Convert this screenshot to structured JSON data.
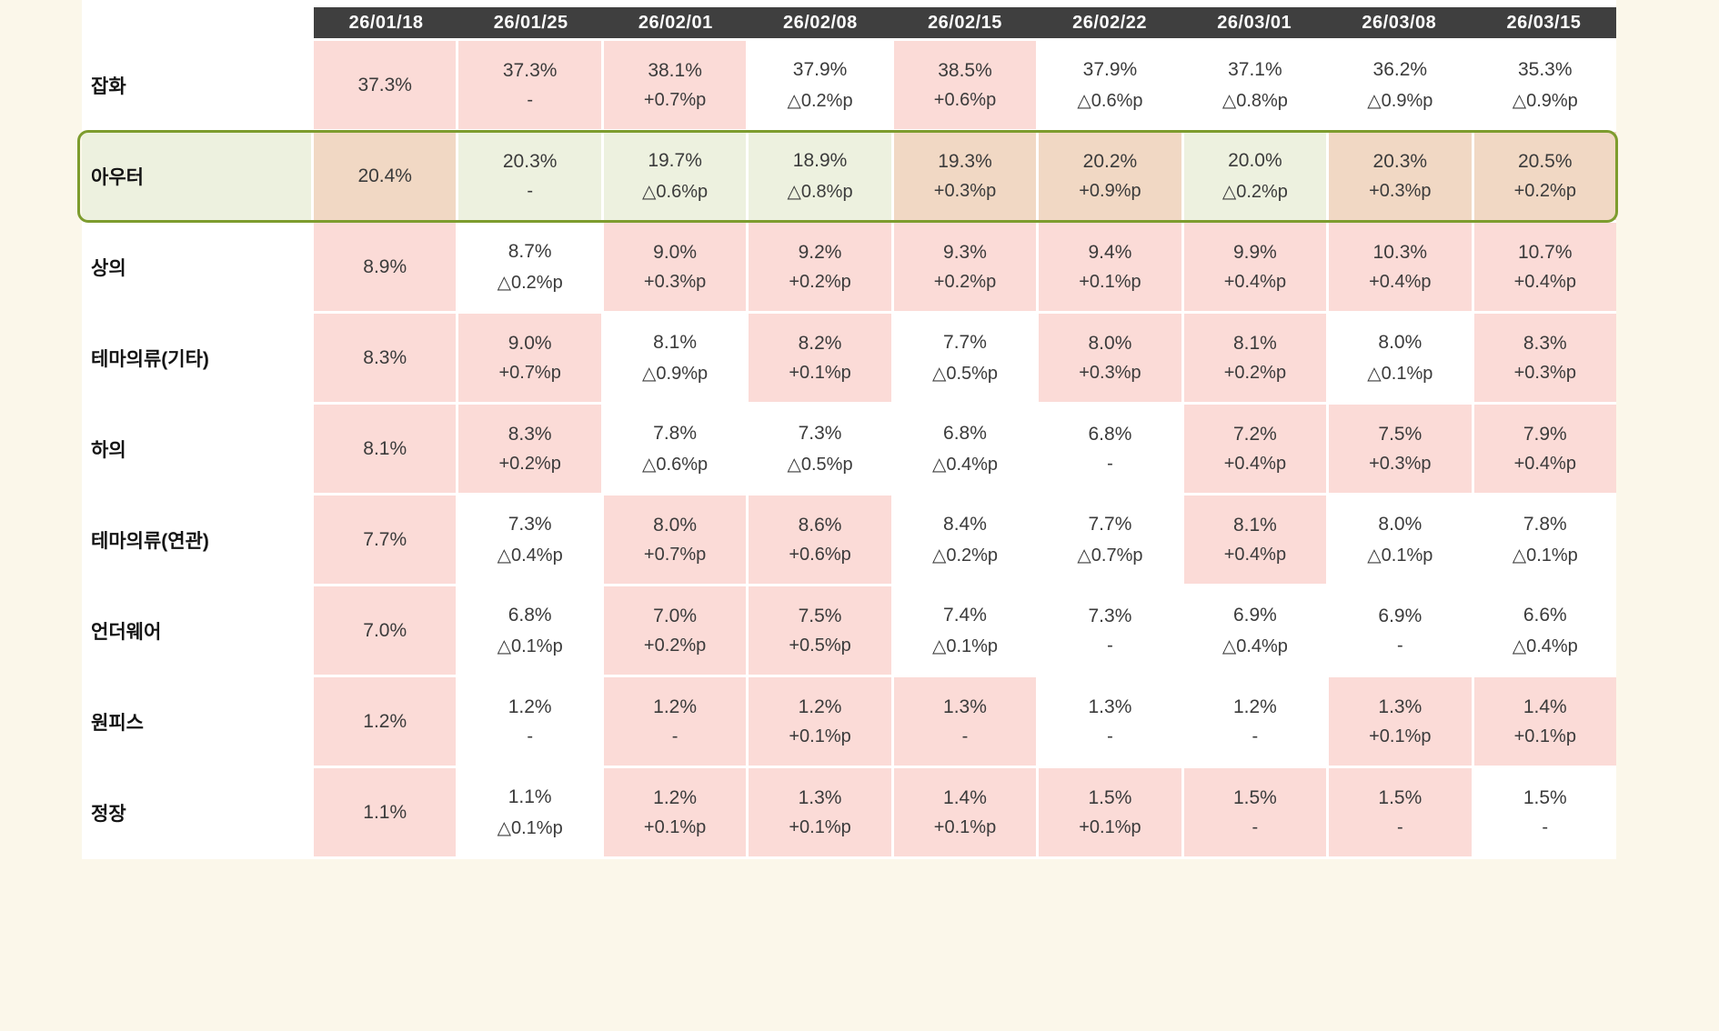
{
  "page": {
    "background_color": "#fbf7ea",
    "panel_background": "#ffffff"
  },
  "colors": {
    "header_background": "#3f3f3f",
    "header_text": "#ffffff",
    "increase_cell_pink": "#fbdbd7",
    "decrease_cell_white": "#ffffff",
    "highlight_increase_tan": "#f1d8c4",
    "highlight_decrease_green": "#edf1df",
    "highlight_border_green": "#7d9c2e",
    "value_text": "#3b3b3b"
  },
  "chart_data": {
    "type": "table",
    "title": "",
    "columns": [
      "26/01/18",
      "26/01/25",
      "26/02/01",
      "26/02/08",
      "26/02/15",
      "26/02/22",
      "26/03/01",
      "26/03/08",
      "26/03/15"
    ],
    "rows": [
      {
        "label": "잡화",
        "highlighted": false,
        "cells": [
          {
            "v": "37.3%",
            "d": "",
            "bg": "pink"
          },
          {
            "v": "37.3%",
            "d": "-",
            "bg": "pink"
          },
          {
            "v": "38.1%",
            "d": "+0.7%p",
            "bg": "pink"
          },
          {
            "v": "37.9%",
            "d": "△0.2%p",
            "bg": "white"
          },
          {
            "v": "38.5%",
            "d": "+0.6%p",
            "bg": "pink"
          },
          {
            "v": "37.9%",
            "d": "△0.6%p",
            "bg": "white"
          },
          {
            "v": "37.1%",
            "d": "△0.8%p",
            "bg": "white"
          },
          {
            "v": "36.2%",
            "d": "△0.9%p",
            "bg": "white"
          },
          {
            "v": "35.3%",
            "d": "△0.9%p",
            "bg": "white"
          }
        ]
      },
      {
        "label": "아우터",
        "highlighted": true,
        "cells": [
          {
            "v": "20.4%",
            "d": "",
            "bg": "tan"
          },
          {
            "v": "20.3%",
            "d": "-",
            "bg": "green"
          },
          {
            "v": "19.7%",
            "d": "△0.6%p",
            "bg": "green"
          },
          {
            "v": "18.9%",
            "d": "△0.8%p",
            "bg": "green"
          },
          {
            "v": "19.3%",
            "d": "+0.3%p",
            "bg": "tan"
          },
          {
            "v": "20.2%",
            "d": "+0.9%p",
            "bg": "tan"
          },
          {
            "v": "20.0%",
            "d": "△0.2%p",
            "bg": "green"
          },
          {
            "v": "20.3%",
            "d": "+0.3%p",
            "bg": "tan"
          },
          {
            "v": "20.5%",
            "d": "+0.2%p",
            "bg": "tan"
          }
        ]
      },
      {
        "label": "상의",
        "highlighted": false,
        "cells": [
          {
            "v": "8.9%",
            "d": "",
            "bg": "pink"
          },
          {
            "v": "8.7%",
            "d": "△0.2%p",
            "bg": "white"
          },
          {
            "v": "9.0%",
            "d": "+0.3%p",
            "bg": "pink"
          },
          {
            "v": "9.2%",
            "d": "+0.2%p",
            "bg": "pink"
          },
          {
            "v": "9.3%",
            "d": "+0.2%p",
            "bg": "pink"
          },
          {
            "v": "9.4%",
            "d": "+0.1%p",
            "bg": "pink"
          },
          {
            "v": "9.9%",
            "d": "+0.4%p",
            "bg": "pink"
          },
          {
            "v": "10.3%",
            "d": "+0.4%p",
            "bg": "pink"
          },
          {
            "v": "10.7%",
            "d": "+0.4%p",
            "bg": "pink"
          }
        ]
      },
      {
        "label": "테마의류(기타)",
        "highlighted": false,
        "cells": [
          {
            "v": "8.3%",
            "d": "",
            "bg": "pink"
          },
          {
            "v": "9.0%",
            "d": "+0.7%p",
            "bg": "pink"
          },
          {
            "v": "8.1%",
            "d": "△0.9%p",
            "bg": "white"
          },
          {
            "v": "8.2%",
            "d": "+0.1%p",
            "bg": "pink"
          },
          {
            "v": "7.7%",
            "d": "△0.5%p",
            "bg": "white"
          },
          {
            "v": "8.0%",
            "d": "+0.3%p",
            "bg": "pink"
          },
          {
            "v": "8.1%",
            "d": "+0.2%p",
            "bg": "pink"
          },
          {
            "v": "8.0%",
            "d": "△0.1%p",
            "bg": "white"
          },
          {
            "v": "8.3%",
            "d": "+0.3%p",
            "bg": "pink"
          }
        ]
      },
      {
        "label": "하의",
        "highlighted": false,
        "cells": [
          {
            "v": "8.1%",
            "d": "",
            "bg": "pink"
          },
          {
            "v": "8.3%",
            "d": "+0.2%p",
            "bg": "pink"
          },
          {
            "v": "7.8%",
            "d": "△0.6%p",
            "bg": "white"
          },
          {
            "v": "7.3%",
            "d": "△0.5%p",
            "bg": "white"
          },
          {
            "v": "6.8%",
            "d": "△0.4%p",
            "bg": "white"
          },
          {
            "v": "6.8%",
            "d": "-",
            "bg": "white"
          },
          {
            "v": "7.2%",
            "d": "+0.4%p",
            "bg": "pink"
          },
          {
            "v": "7.5%",
            "d": "+0.3%p",
            "bg": "pink"
          },
          {
            "v": "7.9%",
            "d": "+0.4%p",
            "bg": "pink"
          }
        ]
      },
      {
        "label": "테마의류(연관)",
        "highlighted": false,
        "cells": [
          {
            "v": "7.7%",
            "d": "",
            "bg": "pink"
          },
          {
            "v": "7.3%",
            "d": "△0.4%p",
            "bg": "white"
          },
          {
            "v": "8.0%",
            "d": "+0.7%p",
            "bg": "pink"
          },
          {
            "v": "8.6%",
            "d": "+0.6%p",
            "bg": "pink"
          },
          {
            "v": "8.4%",
            "d": "△0.2%p",
            "bg": "white"
          },
          {
            "v": "7.7%",
            "d": "△0.7%p",
            "bg": "white"
          },
          {
            "v": "8.1%",
            "d": "+0.4%p",
            "bg": "pink"
          },
          {
            "v": "8.0%",
            "d": "△0.1%p",
            "bg": "white"
          },
          {
            "v": "7.8%",
            "d": "△0.1%p",
            "bg": "white"
          }
        ]
      },
      {
        "label": "언더웨어",
        "highlighted": false,
        "cells": [
          {
            "v": "7.0%",
            "d": "",
            "bg": "pink"
          },
          {
            "v": "6.8%",
            "d": "△0.1%p",
            "bg": "white"
          },
          {
            "v": "7.0%",
            "d": "+0.2%p",
            "bg": "pink"
          },
          {
            "v": "7.5%",
            "d": "+0.5%p",
            "bg": "pink"
          },
          {
            "v": "7.4%",
            "d": "△0.1%p",
            "bg": "white"
          },
          {
            "v": "7.3%",
            "d": "-",
            "bg": "white"
          },
          {
            "v": "6.9%",
            "d": "△0.4%p",
            "bg": "white"
          },
          {
            "v": "6.9%",
            "d": "-",
            "bg": "white"
          },
          {
            "v": "6.6%",
            "d": "△0.4%p",
            "bg": "white"
          }
        ]
      },
      {
        "label": "원피스",
        "highlighted": false,
        "cells": [
          {
            "v": "1.2%",
            "d": "",
            "bg": "pink"
          },
          {
            "v": "1.2%",
            "d": "-",
            "bg": "white"
          },
          {
            "v": "1.2%",
            "d": "-",
            "bg": "pink"
          },
          {
            "v": "1.2%",
            "d": "+0.1%p",
            "bg": "pink"
          },
          {
            "v": "1.3%",
            "d": "-",
            "bg": "pink"
          },
          {
            "v": "1.3%",
            "d": "-",
            "bg": "white"
          },
          {
            "v": "1.2%",
            "d": "-",
            "bg": "white"
          },
          {
            "v": "1.3%",
            "d": "+0.1%p",
            "bg": "pink"
          },
          {
            "v": "1.4%",
            "d": "+0.1%p",
            "bg": "pink"
          }
        ]
      },
      {
        "label": "정장",
        "highlighted": false,
        "cells": [
          {
            "v": "1.1%",
            "d": "",
            "bg": "pink"
          },
          {
            "v": "1.1%",
            "d": "△0.1%p",
            "bg": "white"
          },
          {
            "v": "1.2%",
            "d": "+0.1%p",
            "bg": "pink"
          },
          {
            "v": "1.3%",
            "d": "+0.1%p",
            "bg": "pink"
          },
          {
            "v": "1.4%",
            "d": "+0.1%p",
            "bg": "pink"
          },
          {
            "v": "1.5%",
            "d": "+0.1%p",
            "bg": "pink"
          },
          {
            "v": "1.5%",
            "d": "-",
            "bg": "pink"
          },
          {
            "v": "1.5%",
            "d": "-",
            "bg": "pink"
          },
          {
            "v": "1.5%",
            "d": "-",
            "bg": "white"
          }
        ]
      }
    ]
  }
}
